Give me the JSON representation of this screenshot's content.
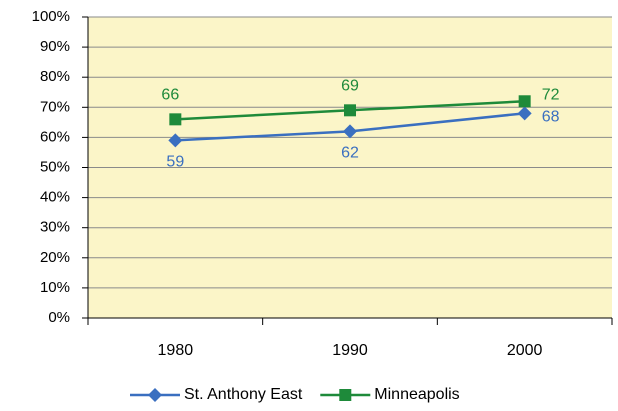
{
  "chart_data": {
    "type": "line",
    "categories": [
      "1980",
      "1990",
      "2000"
    ],
    "series": [
      {
        "name": "St. Anthony East",
        "color": "#3a6fc0",
        "marker": "diamond",
        "values": [
          59,
          62,
          68
        ]
      },
      {
        "name": "Minneapolis",
        "color": "#1e8a3a",
        "marker": "square",
        "values": [
          66,
          69,
          72
        ]
      }
    ],
    "ylim": [
      0,
      100
    ],
    "yticks": [
      {
        "value": 0,
        "label": "0%"
      },
      {
        "value": 10,
        "label": "10%"
      },
      {
        "value": 20,
        "label": "20%"
      },
      {
        "value": 30,
        "label": "30%"
      },
      {
        "value": 40,
        "label": "40%"
      },
      {
        "value": 50,
        "label": "50%"
      },
      {
        "value": 60,
        "label": "60%"
      },
      {
        "value": 70,
        "label": "70%"
      },
      {
        "value": 80,
        "label": "80%"
      },
      {
        "value": 90,
        "label": "90%"
      },
      {
        "value": 100,
        "label": "100%"
      }
    ],
    "grid": true,
    "legend": "bottom"
  }
}
